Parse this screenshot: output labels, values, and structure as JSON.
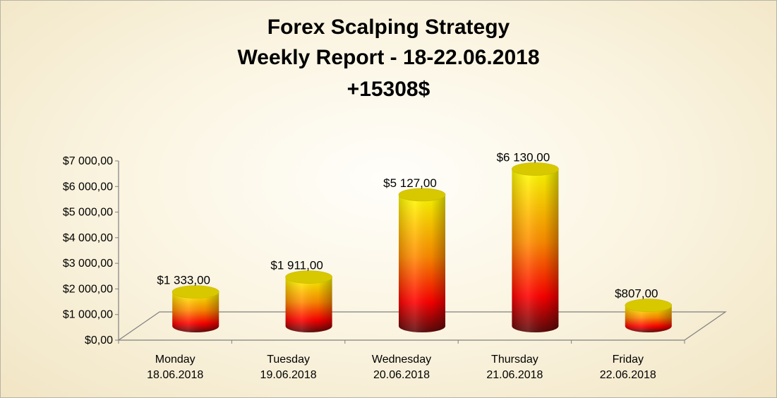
{
  "chart_data": {
    "type": "bar",
    "style": "3d-cylinder",
    "title_lines": [
      "Forex Scalping Strategy",
      "Weekly Report - 18-22.06.2018",
      "+15308$"
    ],
    "categories": [
      [
        "Monday",
        "18.06.2018"
      ],
      [
        "Tuesday",
        "19.06.2018"
      ],
      [
        "Wednesday",
        "20.06.2018"
      ],
      [
        "Thursday",
        "21.06.2018"
      ],
      [
        "Friday",
        "22.06.2018"
      ]
    ],
    "values": [
      1333,
      1911,
      5127,
      6130,
      807
    ],
    "data_labels": [
      "$1 333,00",
      "$1 911,00",
      "$5 127,00",
      "$6 130,00",
      "$807,00"
    ],
    "ylim": [
      0,
      7000
    ],
    "y_ticks": [
      0,
      1000,
      2000,
      3000,
      4000,
      5000,
      6000,
      7000
    ],
    "y_tick_labels": [
      "$0,00",
      "$1 000,00",
      "$2 000,00",
      "$3 000,00",
      "$4 000,00",
      "$5 000,00",
      "$6 000,00",
      "$7 000,00"
    ],
    "grid": false,
    "legend": "none",
    "colors": {
      "top": "#ffff00",
      "mid": "#ff8c00",
      "low": "#ff0000",
      "base": "#5a0a0a",
      "cap": "#d8c800"
    }
  }
}
